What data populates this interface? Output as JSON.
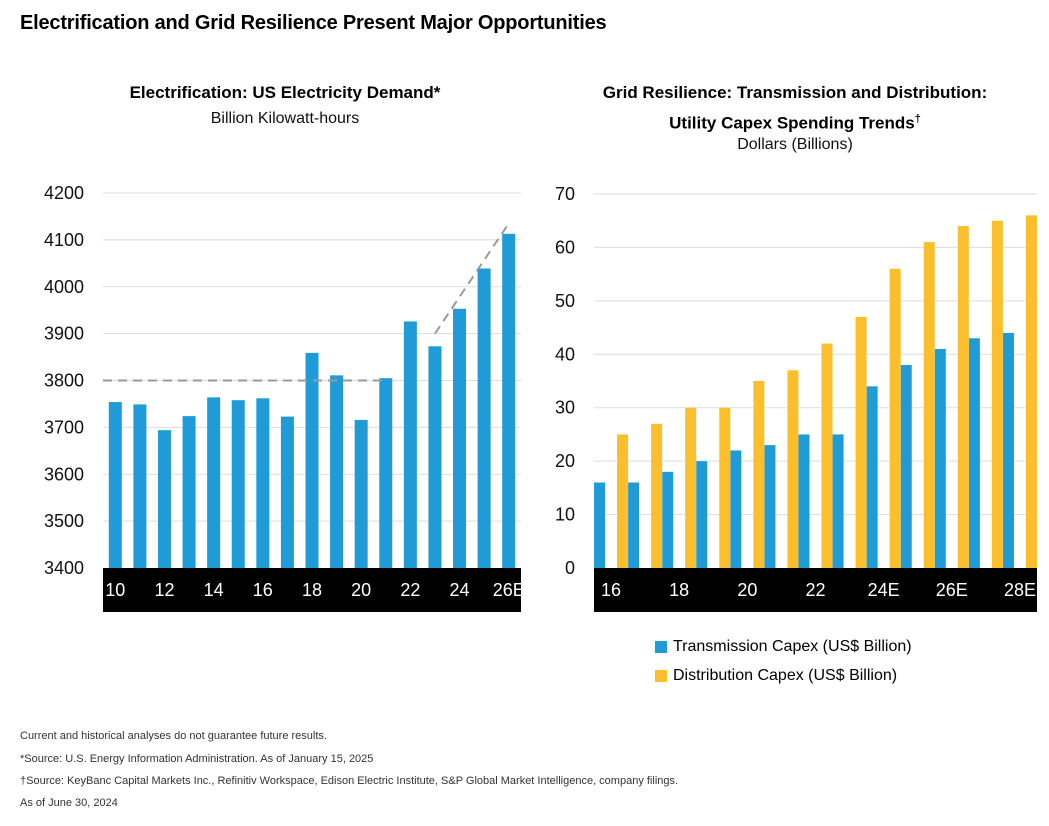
{
  "page_title": "Electrification and Grid Resilience Present Major Opportunities",
  "charts": {
    "left": {
      "title": "Electrification: US Electricity Demand*",
      "subtitle": "Billion Kilowatt-hours"
    },
    "right": {
      "title_line1": "Grid Resilience: Transmission and Distribution:",
      "title_line2": "Utility Capex Spending Trends",
      "title_mark": "†",
      "subtitle": "Dollars (Billions)"
    }
  },
  "legend": {
    "transmission": "Transmission Capex (US$ Billion)",
    "distribution": "Distribution Capex (US$ Billion)"
  },
  "footnotes": [
    "Current and historical analyses do not guarantee future results.",
    "*Source: U.S. Energy Information Administration. As of January 15, 2025",
    "†Source: KeyBanc Capital Markets Inc., Refinitiv Workspace, Edison Electric Institute, S&P Global Market Intelligence, company filings.",
    "As of June 30, 2024"
  ],
  "colors": {
    "blue": "#1f9bd7",
    "yellow": "#fbbf2d",
    "axis_band": "#000000",
    "trend": "#9a9a9a",
    "grid": "#dddddd"
  },
  "chart_data": [
    {
      "type": "bar",
      "categories": [
        "10",
        "11",
        "12",
        "13",
        "14",
        "15",
        "16",
        "17",
        "18",
        "19",
        "20",
        "21",
        "22",
        "23",
        "24",
        "25",
        "26E"
      ],
      "tick_labels": [
        "10",
        "12",
        "14",
        "16",
        "18",
        "20",
        "22",
        "24",
        "26E"
      ],
      "values": [
        3754,
        3749,
        3694,
        3724,
        3764,
        3758,
        3762,
        3723,
        3859,
        3811,
        3716,
        3805,
        3926,
        3873,
        3953,
        4039,
        4113
      ],
      "ylim": [
        3400,
        4200
      ],
      "yticks": [
        3400,
        3500,
        3600,
        3700,
        3800,
        3900,
        4000,
        4100,
        4200
      ],
      "trendlines": [
        {
          "from": [
            "10",
            3800
          ],
          "to": [
            "21",
            3800
          ]
        },
        {
          "from": [
            "23",
            3900
          ],
          "to": [
            "26E",
            4135
          ]
        }
      ],
      "title": "Electrification: US Electricity Demand*",
      "ylabel": "Billion Kilowatt-hours",
      "grid": true
    },
    {
      "type": "bar",
      "categories": [
        "16",
        "17",
        "18",
        "19",
        "20",
        "21",
        "22",
        "23",
        "24E",
        "25E",
        "26E",
        "27E",
        "28E"
      ],
      "tick_labels": [
        "16",
        "18",
        "20",
        "22",
        "24E",
        "26E",
        "28E"
      ],
      "series": [
        {
          "name": "Transmission Capex (US$ Billion)",
          "values": [
            16,
            16,
            18,
            20,
            22,
            23,
            25,
            25,
            34,
            38,
            41,
            43,
            44
          ]
        },
        {
          "name": "Distribution Capex (US$ Billion)",
          "values": [
            25,
            27,
            30,
            30,
            35,
            37,
            42,
            47,
            56,
            61,
            64,
            65,
            66
          ]
        }
      ],
      "ylim": [
        0,
        70
      ],
      "yticks": [
        0,
        10,
        20,
        30,
        40,
        50,
        60,
        70
      ],
      "title": "Grid Resilience: Transmission and Distribution: Utility Capex Spending Trends†",
      "ylabel": "Dollars (Billions)",
      "legend": "bottom",
      "grid": true
    }
  ]
}
